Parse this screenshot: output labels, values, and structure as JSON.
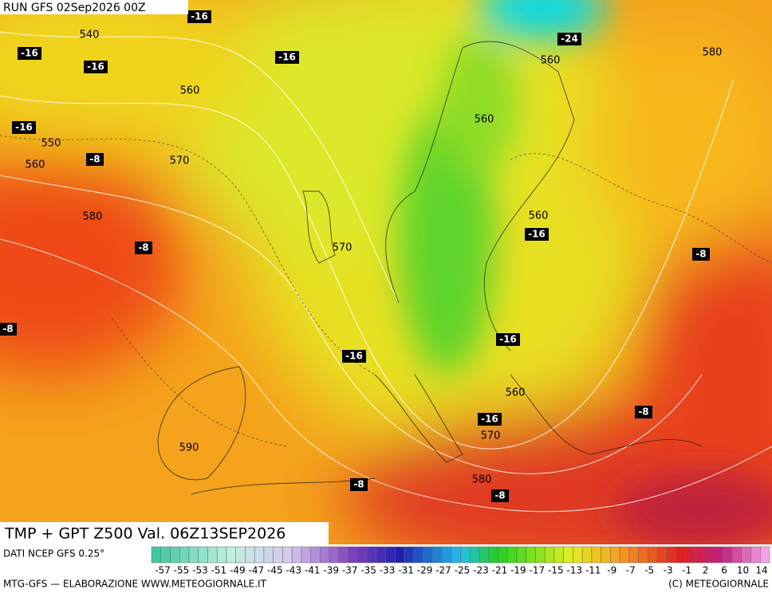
{
  "header": {
    "run": "RUN GFS 02Sep2026 00Z"
  },
  "map": {
    "height_labels": [
      "540",
      "560",
      "550",
      "560",
      "570",
      "580",
      "570",
      "560",
      "560",
      "560",
      "580",
      "560",
      "570",
      "580",
      "590"
    ],
    "temp_labels": [
      "-16",
      "-16",
      "-16",
      "-16",
      "-16",
      "-8",
      "-8",
      "-8",
      "-24",
      "-16",
      "-8",
      "-16",
      "-16",
      "-8",
      "-16",
      "-8",
      "-8"
    ],
    "title": "TMP + GPT Z500 Val. 06Z13SEP2026"
  },
  "footer": {
    "source": "DATI NCEP GFS 0.25°",
    "credit_left": "MTG-GFS — ELABORAZIONE WWW.METEOGIORNALE.IT",
    "credit_right": "(C) METEOGIORNALE",
    "scale_labels": [
      "-57",
      "-55",
      "-53",
      "-51",
      "-49",
      "-47",
      "-45",
      "-43",
      "-41",
      "-39",
      "-37",
      "-35",
      "-33",
      "-31",
      "-29",
      "-27",
      "-25",
      "-23",
      "-21",
      "-19",
      "-17",
      "-15",
      "-13",
      "-11",
      "-9",
      "-7",
      "-5",
      "-3",
      "-1",
      "2",
      "6",
      "10",
      "14"
    ]
  }
}
